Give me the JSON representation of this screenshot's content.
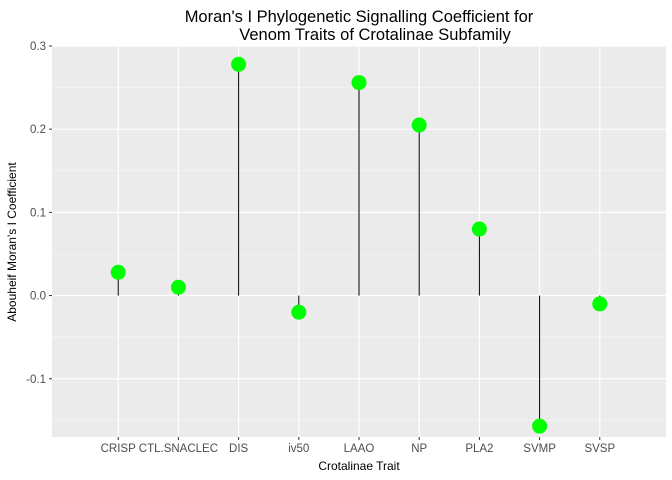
{
  "chart_data": {
    "type": "lollipop",
    "title": "Moran's I Phylogenetic Signalling Coefficient for",
    "subtitle": "Venom Traits of Crotalinae Subfamily",
    "xlabel": "Crotalinae Trait",
    "ylabel": "Abouheif Moran's I Coefficient",
    "categories": [
      "CRISP",
      "CTL.SNACLEC",
      "DIS",
      "iv50",
      "LAAO",
      "NP",
      "PLA2",
      "SVMP",
      "SVSP"
    ],
    "values": [
      0.028,
      0.01,
      0.278,
      -0.02,
      0.256,
      0.205,
      0.08,
      -0.157,
      -0.01
    ],
    "ylim": [
      -0.17,
      0.3
    ],
    "yticks": [
      -0.1,
      0.0,
      0.1,
      0.2,
      0.3
    ],
    "ytick_labels": [
      "-0.1",
      "0.0",
      "0.1",
      "0.2",
      "0.3"
    ],
    "grid": true,
    "panel_color": "#ebebeb",
    "point_color": "#00ff00",
    "stem_color": "#000000"
  }
}
